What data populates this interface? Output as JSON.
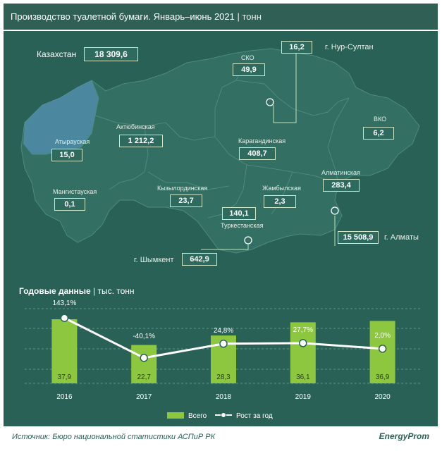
{
  "header": {
    "title": "Производство туалетной бумаги. Январь–июнь 2021",
    "unit": "| тонн"
  },
  "kazakhstan": {
    "label": "Казахстан",
    "value": "18 309,6"
  },
  "regions": [
    {
      "id": "nur-sultan",
      "label": "г. Нур-Султан",
      "value": "16,2"
    },
    {
      "id": "sko",
      "label": "СКО",
      "value": "49,9"
    },
    {
      "id": "aktobe",
      "label": "Актюбинская",
      "value": "1 212,2"
    },
    {
      "id": "vko",
      "label": "ВКО",
      "value": "6,2"
    },
    {
      "id": "atyrau",
      "label": "Атырауская",
      "value": "15,0"
    },
    {
      "id": "karaganda",
      "label": "Карагандинская",
      "value": "408,7"
    },
    {
      "id": "almaty-reg",
      "label": "Алматинская",
      "value": "283,4"
    },
    {
      "id": "mangystau",
      "label": "Мангистауская",
      "value": "0,1"
    },
    {
      "id": "kyzylorda",
      "label": "Кызылординская",
      "value": "23,7"
    },
    {
      "id": "zhambyl",
      "label": "Жамбылская",
      "value": "2,3"
    },
    {
      "id": "turkestan",
      "label": "Туркестанская",
      "value": "140,1"
    },
    {
      "id": "almaty-city",
      "label": "г. Алматы",
      "value": "15 508,9"
    },
    {
      "id": "shymkent",
      "label": "г. Шымкент",
      "value": "642,9"
    }
  ],
  "annual": {
    "title": "Годовые данные",
    "unit": "| тыс. тонн"
  },
  "chart_data": {
    "type": "bar",
    "categories": [
      "2016",
      "2017",
      "2018",
      "2019",
      "2020"
    ],
    "series": [
      {
        "name": "Всего",
        "values": [
          37.9,
          22.7,
          28.3,
          36.1,
          36.9
        ],
        "labels": [
          "37,9",
          "22,7",
          "28,3",
          "36,1",
          "36,9"
        ],
        "color": "#8dc63f"
      },
      {
        "name": "Рост за год",
        "values": [
          143.1,
          -40.1,
          24.8,
          27.7,
          2.0
        ],
        "labels": [
          "143,1%",
          "-40,1%",
          "24,8%",
          "27,7%",
          "2,0%"
        ],
        "color": "#ffffff"
      }
    ],
    "grid": true,
    "legend": "bottom-center"
  },
  "footer": {
    "source": "Источник: Бюро национальной статистики АСПиР РК",
    "logo": "EnergyProm"
  }
}
